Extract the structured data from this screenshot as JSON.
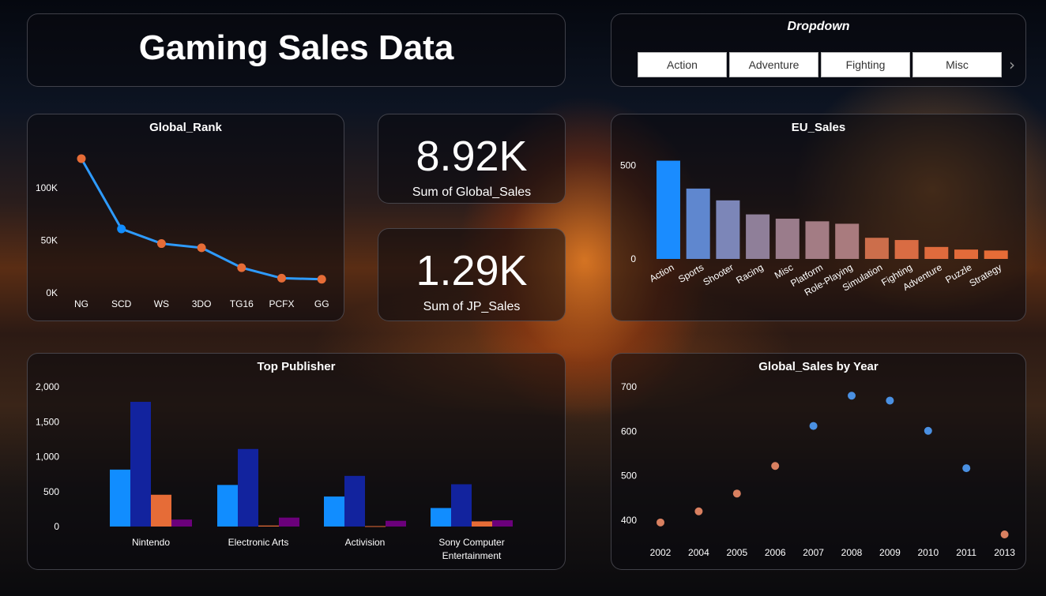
{
  "title": "Gaming Sales Data",
  "dropdown": {
    "title": "Dropdown",
    "options": [
      "Action",
      "Adventure",
      "Fighting",
      "Misc"
    ]
  },
  "kpis": [
    {
      "value": "8.92K",
      "label": "Sum of Global_Sales"
    },
    {
      "value": "1.29K",
      "label": "Sum of JP_Sales"
    }
  ],
  "colors": {
    "blue": "#118dff",
    "navy": "#12239e",
    "orange": "#e66c37",
    "purple": "#6b007b",
    "line_blue": "#2e9bff",
    "dot_orange": "#e66c37"
  },
  "chart_data": [
    {
      "id": "global_rank",
      "type": "line",
      "title": "Global_Rank",
      "categories": [
        "NG",
        "SCD",
        "WS",
        "3DO",
        "TG16",
        "PCFX",
        "GG"
      ],
      "values": [
        128000,
        61000,
        47000,
        43000,
        24000,
        14000,
        13000
      ],
      "point_colors": [
        "orange",
        "blue",
        "orange",
        "orange",
        "orange",
        "orange",
        "orange"
      ],
      "y_ticks": [
        "0K",
        "50K",
        "100K"
      ],
      "ylim": [
        0,
        140000
      ],
      "grid": false
    },
    {
      "id": "eu_sales",
      "type": "bar",
      "title": "EU_Sales",
      "categories": [
        "Action",
        "Sports",
        "Shooter",
        "Racing",
        "Misc",
        "Platform",
        "Role-Playing",
        "Simulation",
        "Fighting",
        "Adventure",
        "Puzzle",
        "Strategy"
      ],
      "values": [
        525,
        376,
        313,
        238,
        215,
        201,
        188,
        113,
        101,
        64,
        50,
        45
      ],
      "y_ticks": [
        "0",
        "500"
      ],
      "ylim": [
        0,
        560
      ]
    },
    {
      "id": "top_publisher",
      "type": "bar",
      "title": "Top Publisher",
      "categories": [
        "Nintendo",
        "Electronic Arts",
        "Activision",
        "Sony Computer Entertainment"
      ],
      "series": [
        {
          "values": [
            815,
            595,
            430,
            265
          ]
        },
        {
          "values": [
            1785,
            1110,
            725,
            605
          ]
        },
        {
          "values": [
            455,
            14,
            6,
            74
          ]
        },
        {
          "values": [
            100,
            128,
            82,
            90
          ]
        }
      ],
      "y_ticks": [
        "0",
        "500",
        "1,000",
        "1,500",
        "2,000"
      ],
      "ylim": [
        0,
        2000
      ]
    },
    {
      "id": "sales_by_year",
      "type": "scatter",
      "title": "Global_Sales by Year",
      "categories": [
        "2002",
        "2004",
        "2005",
        "2006",
        "2007",
        "2008",
        "2009",
        "2010",
        "2011",
        "2013"
      ],
      "values": [
        395,
        420,
        460,
        522,
        612,
        680,
        669,
        601,
        517,
        368
      ],
      "point_colors": [
        "orange",
        "orange",
        "orange",
        "orange",
        "blue",
        "blue",
        "blue",
        "blue",
        "blue",
        "orange"
      ],
      "y_ticks": [
        "400",
        "500",
        "600",
        "700"
      ],
      "ylim": [
        370,
        700
      ]
    }
  ]
}
